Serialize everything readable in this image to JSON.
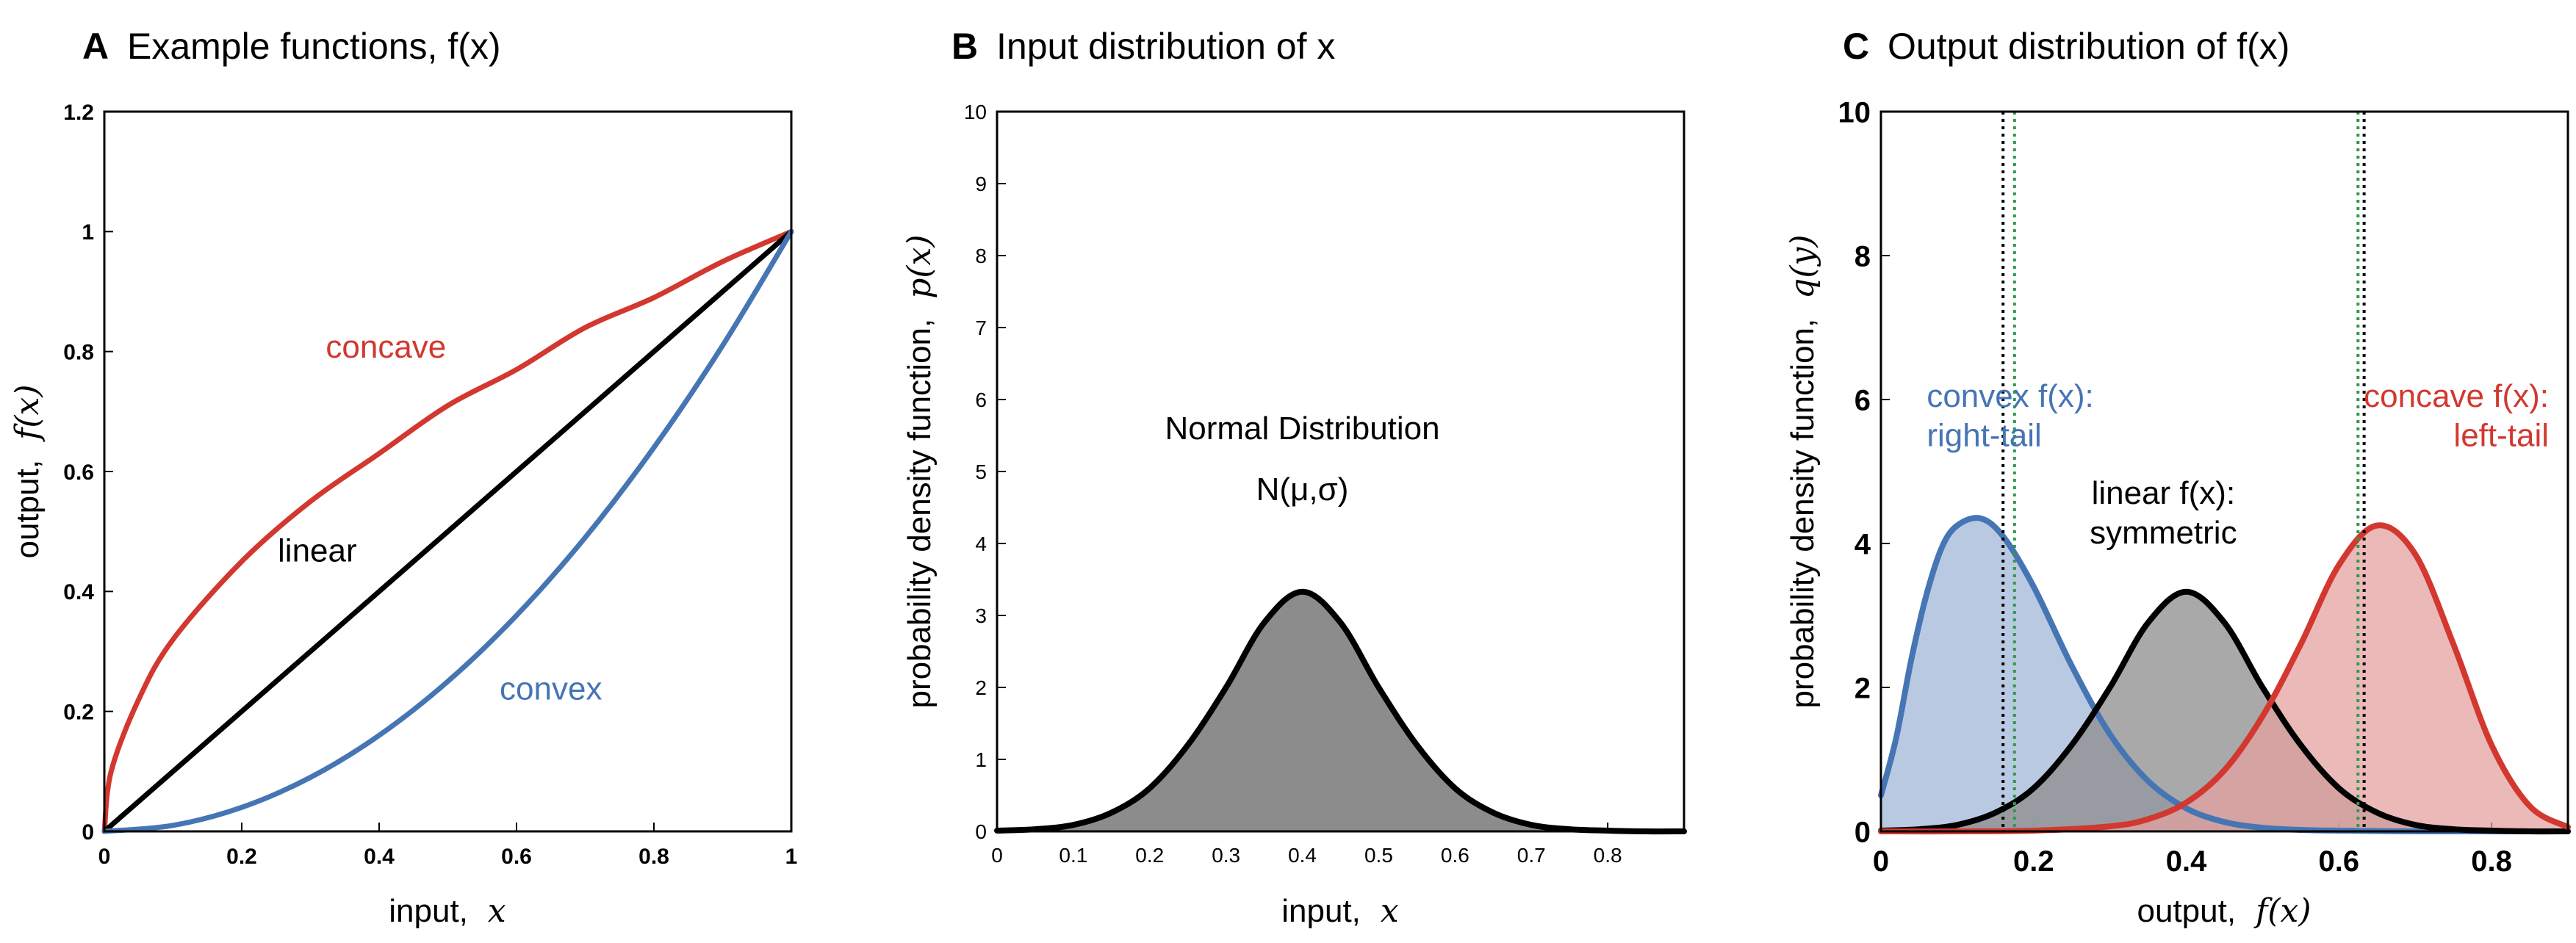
{
  "colors": {
    "concave": "#d2382f",
    "linear": "#000000",
    "convex": "#4675b4",
    "convex_fill": "#aebfdd",
    "linear_fill": "#8c8c8c",
    "concave_fill": "#e3a2a0",
    "green_dotted": "#2e9a48"
  },
  "chart_data": [
    {
      "panel_letter": "A",
      "type": "line",
      "title": "Example functions, f(x)",
      "xlabel_text": "input,",
      "xlabel_math": "x",
      "ylabel_text": "output,",
      "ylabel_math": "f(x)",
      "xlim": [
        0,
        1
      ],
      "ylim": [
        0,
        1.2
      ],
      "xticks": [
        0,
        0.2,
        0.4,
        0.6,
        0.8,
        1
      ],
      "xtick_labels": [
        "0",
        "0.2",
        "0.4",
        "0.6",
        "0.8",
        "1"
      ],
      "yticks": [
        0,
        0.2,
        0.4,
        0.6,
        0.8,
        1,
        1.2
      ],
      "ytick_labels": [
        "0",
        "0.2",
        "0.4",
        "0.6",
        "0.8",
        "1",
        "1.2"
      ],
      "series": [
        {
          "name": "concave",
          "x": [
            0,
            0.01,
            0.05,
            0.1,
            0.2,
            0.3,
            0.4,
            0.5,
            0.6,
            0.7,
            0.8,
            0.9,
            1
          ],
          "y": [
            0,
            0.1,
            0.22,
            0.32,
            0.45,
            0.55,
            0.63,
            0.71,
            0.77,
            0.84,
            0.89,
            0.95,
            1
          ]
        },
        {
          "name": "linear",
          "x": [
            0,
            0.5,
            1
          ],
          "y": [
            0,
            0.5,
            1
          ]
        },
        {
          "name": "convex",
          "x": [
            0,
            0.1,
            0.2,
            0.3,
            0.4,
            0.5,
            0.6,
            0.7,
            0.8,
            0.9,
            1
          ],
          "y": [
            0,
            0.01,
            0.04,
            0.09,
            0.16,
            0.25,
            0.36,
            0.49,
            0.64,
            0.81,
            1
          ]
        }
      ],
      "annotations": [
        {
          "text": "concave",
          "x": 0.41,
          "y": 0.79,
          "color": "concave"
        },
        {
          "text": "linear",
          "x": 0.31,
          "y": 0.45,
          "color": "linear"
        },
        {
          "text": "convex",
          "x": 0.65,
          "y": 0.22,
          "color": "convex"
        }
      ]
    },
    {
      "panel_letter": "B",
      "type": "area",
      "title": "Input distribution of x",
      "xlabel_text": "input,",
      "xlabel_math": "x",
      "ylabel_text": "probability density function,",
      "ylabel_math": "p(x)",
      "xlim": [
        0,
        0.9
      ],
      "ylim": [
        0,
        10
      ],
      "xticks": [
        0,
        0.1,
        0.2,
        0.3,
        0.4,
        0.5,
        0.6,
        0.7,
        0.8
      ],
      "xtick_labels": [
        "0",
        "0.1",
        "0.2",
        "0.3",
        "0.4",
        "0.5",
        "0.6",
        "0.7",
        "0.8"
      ],
      "yticks": [
        0,
        1,
        2,
        3,
        4,
        5,
        6,
        7,
        8,
        9,
        10
      ],
      "ytick_labels": [
        "0",
        "1",
        "2",
        "3",
        "4",
        "5",
        "6",
        "7",
        "8",
        "9",
        "10"
      ],
      "series": [
        {
          "name": "Normal Distribution",
          "x": [
            0,
            0.05,
            0.1,
            0.15,
            0.2,
            0.25,
            0.3,
            0.35,
            0.4,
            0.45,
            0.5,
            0.55,
            0.6,
            0.65,
            0.7,
            0.75,
            0.8,
            0.85,
            0.9
          ],
          "y": [
            0.01,
            0.03,
            0.09,
            0.26,
            0.6,
            1.2,
            2.0,
            2.9,
            3.33,
            2.9,
            2.0,
            1.2,
            0.6,
            0.26,
            0.09,
            0.03,
            0.01,
            0.0,
            0.0
          ]
        }
      ],
      "annotations": [
        {
          "text": "Normal Distribution",
          "x": 0.4,
          "y": 5.45
        },
        {
          "text": "N(μ,σ)",
          "x": 0.4,
          "y": 4.6
        }
      ]
    },
    {
      "panel_letter": "C",
      "type": "area",
      "title": "Output distribution of f(x)",
      "xlabel_text": "output,",
      "xlabel_math": "f(x)",
      "ylabel_text": "probability density function,",
      "ylabel_math": "q(y)",
      "xlim": [
        0,
        0.9
      ],
      "ylim": [
        0,
        10
      ],
      "xticks": [
        0,
        0.2,
        0.4,
        0.6,
        0.8
      ],
      "xtick_labels": [
        "0",
        "0.2",
        "0.4",
        "0.6",
        "0.8"
      ],
      "yticks": [
        0,
        2,
        4,
        6,
        8,
        10
      ],
      "ytick_labels": [
        "0",
        "2",
        "4",
        "6",
        "8",
        "10"
      ],
      "series": [
        {
          "name": "convex f(x)",
          "x": [
            0,
            0.02,
            0.04,
            0.06,
            0.08,
            0.1,
            0.13,
            0.16,
            0.2,
            0.25,
            0.3,
            0.35,
            0.4,
            0.45,
            0.5,
            0.55,
            0.6,
            0.7,
            0.8,
            0.9
          ],
          "y": [
            0.5,
            1.3,
            2.4,
            3.3,
            3.95,
            4.25,
            4.35,
            4.1,
            3.4,
            2.3,
            1.35,
            0.7,
            0.32,
            0.13,
            0.05,
            0.02,
            0.01,
            0,
            0,
            0
          ]
        },
        {
          "name": "linear f(x)",
          "x": [
            0,
            0.05,
            0.1,
            0.15,
            0.2,
            0.25,
            0.3,
            0.35,
            0.4,
            0.45,
            0.5,
            0.55,
            0.6,
            0.65,
            0.7,
            0.75,
            0.8,
            0.85,
            0.9
          ],
          "y": [
            0.01,
            0.03,
            0.09,
            0.26,
            0.6,
            1.2,
            2.0,
            2.9,
            3.33,
            2.9,
            2.0,
            1.2,
            0.6,
            0.26,
            0.09,
            0.03,
            0.01,
            0.0,
            0.0
          ]
        },
        {
          "name": "concave f(x)",
          "x": [
            0,
            0.1,
            0.2,
            0.3,
            0.35,
            0.4,
            0.45,
            0.5,
            0.55,
            0.6,
            0.65,
            0.7,
            0.75,
            0.8,
            0.85,
            0.9
          ],
          "y": [
            0,
            0,
            0.01,
            0.07,
            0.17,
            0.4,
            0.85,
            1.6,
            2.6,
            3.7,
            4.25,
            3.85,
            2.6,
            1.2,
            0.35,
            0.06
          ]
        }
      ],
      "vlines": [
        {
          "x": 0.16,
          "color": "linear"
        },
        {
          "x": 0.175,
          "color": "green_dotted"
        },
        {
          "x": 0.625,
          "color": "green_dotted"
        },
        {
          "x": 0.633,
          "color": "linear"
        }
      ],
      "annotations": [
        {
          "lines": [
            "convex f(x):",
            "right-tail"
          ],
          "x": 0.06,
          "y": 5.9,
          "anchor": "start",
          "color": "convex"
        },
        {
          "lines": [
            "concave f(x):",
            "left-tail"
          ],
          "x": 0.875,
          "y": 5.9,
          "anchor": "end",
          "color": "concave"
        },
        {
          "lines": [
            "linear f(x):",
            "symmetric"
          ],
          "x": 0.37,
          "y": 4.55,
          "anchor": "middle",
          "color": "linear"
        }
      ]
    }
  ]
}
